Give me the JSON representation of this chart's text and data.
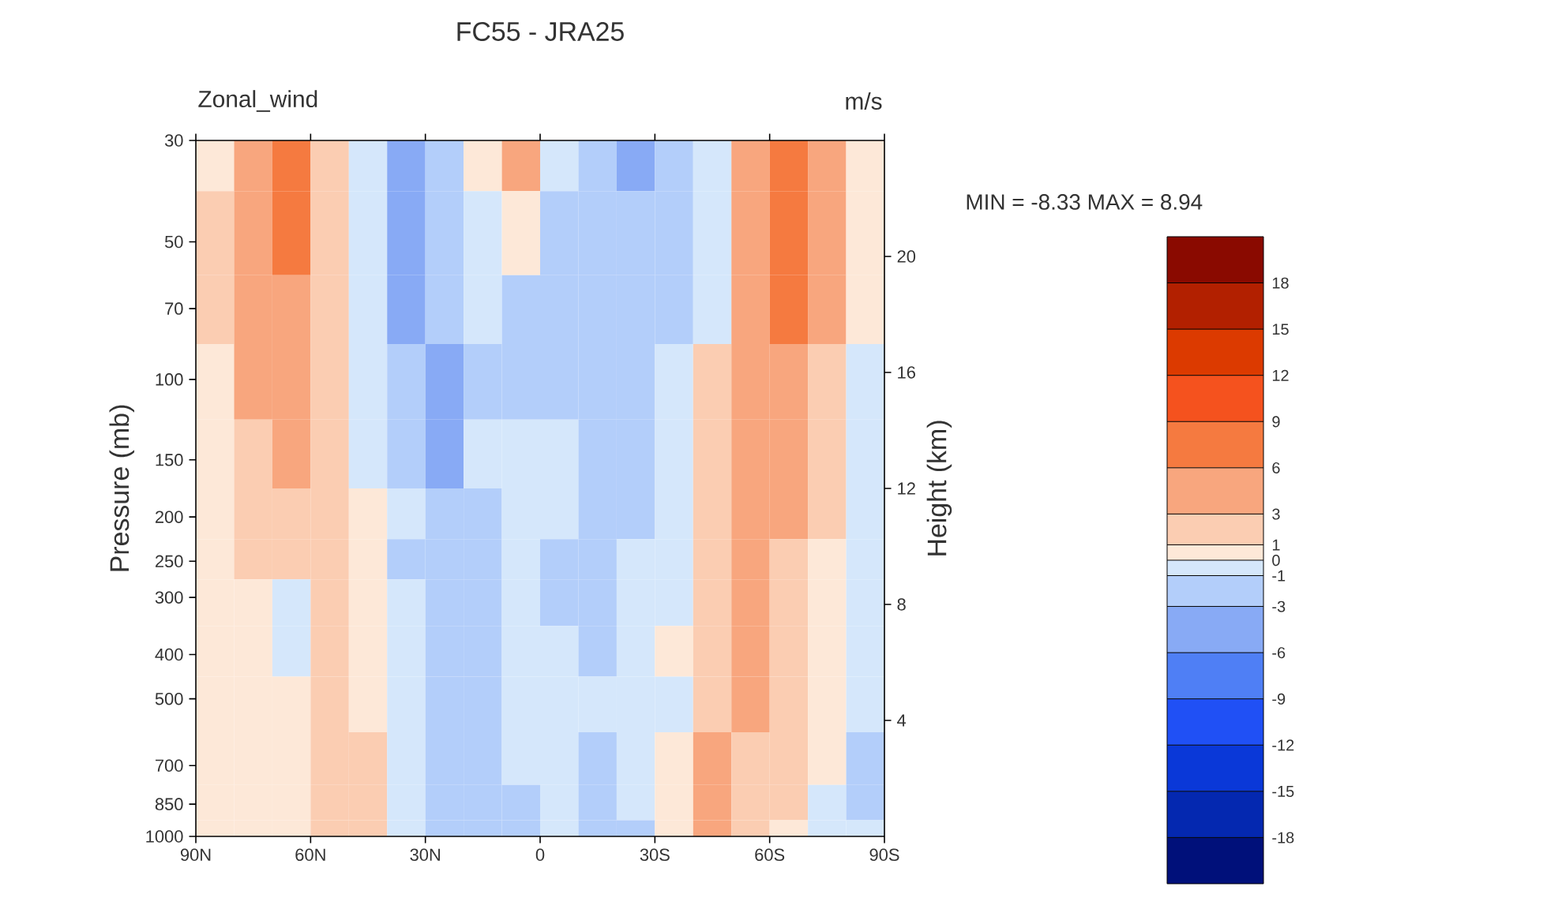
{
  "chart_data": {
    "type": "heatmap",
    "title": "FC55 - JRA25",
    "annotations": [
      "Zonal_wind",
      "m/s",
      "MIN =  -8.33  MAX =   8.94"
    ],
    "ylabel": "Pressure (mb)",
    "y2label": "Height (km)",
    "x": [
      85,
      75,
      65,
      55,
      45,
      35,
      25,
      15,
      5,
      -5,
      -15,
      -25,
      -35,
      -45,
      -55,
      -65,
      -75,
      -85
    ],
    "y": [
      30,
      50,
      70,
      100,
      150,
      200,
      250,
      300,
      400,
      500,
      700,
      850,
      1000
    ],
    "xlim": [
      90,
      -90
    ],
    "xticks": [
      {
        "value": 90,
        "label": "90N"
      },
      {
        "value": 60,
        "label": "60N"
      },
      {
        "value": 30,
        "label": "30N"
      },
      0,
      {
        "value": -30,
        "label": "30S"
      },
      {
        "value": -60,
        "label": "60S"
      },
      {
        "value": -90,
        "label": "90S"
      }
    ],
    "ylim": [
      1000,
      30
    ],
    "log": "y",
    "yticks": [
      30,
      50,
      70,
      100,
      150,
      200,
      250,
      300,
      400,
      500,
      700,
      850,
      1000
    ],
    "y2lim": [
      0,
      24
    ],
    "y2ticks": [
      4,
      8,
      12,
      16,
      20
    ],
    "cells": [
      [
        0.5,
        4.5,
        7.5,
        2,
        -0.5,
        -4.5,
        -2,
        0.5,
        4.5,
        -0.5,
        -2,
        -4.5,
        -2,
        -0.5,
        4.5,
        7.5,
        4.5,
        0.5
      ],
      [
        2,
        4.5,
        7.5,
        2,
        -0.5,
        -4.5,
        -2,
        -0.5,
        0.5,
        -2,
        -2,
        -2,
        -2,
        -0.5,
        4.5,
        7.5,
        4.5,
        0.5
      ],
      [
        2,
        4.5,
        4.5,
        2,
        -0.5,
        -4.5,
        -2,
        -0.5,
        -2,
        -2,
        -2,
        -2,
        -2,
        -0.5,
        4.5,
        7.5,
        4.5,
        0.5
      ],
      [
        0.5,
        4.5,
        4.5,
        2,
        -0.5,
        -2,
        -4.5,
        -2,
        -2,
        -2,
        -2,
        -2,
        -0.5,
        2,
        4.5,
        4.5,
        2,
        -0.5
      ],
      [
        0.5,
        2,
        4.5,
        2,
        -0.5,
        -2,
        -4.5,
        -0.5,
        -0.5,
        -0.5,
        -2,
        -2,
        -0.5,
        2,
        4.5,
        4.5,
        2,
        -0.5
      ],
      [
        0.5,
        2,
        2,
        2,
        0.5,
        -0.5,
        -2,
        -2,
        -0.5,
        -0.5,
        -2,
        -2,
        -0.5,
        2,
        4.5,
        4.5,
        2,
        -0.5
      ],
      [
        0.5,
        2,
        2,
        2,
        0.5,
        -2,
        -2,
        -2,
        -0.5,
        -2,
        -2,
        -0.5,
        -0.5,
        2,
        4.5,
        2,
        0.5,
        -0.5
      ],
      [
        0.5,
        0.5,
        -0.5,
        2,
        0.5,
        -0.5,
        -2,
        -2,
        -0.5,
        -2,
        -2,
        -0.5,
        -0.5,
        2,
        4.5,
        2,
        0.5,
        -0.5
      ],
      [
        0.5,
        0.5,
        -0.5,
        2,
        0.5,
        -0.5,
        -2,
        -2,
        -0.5,
        -0.5,
        -2,
        -0.5,
        0.5,
        2,
        4.5,
        2,
        0.5,
        -0.5
      ],
      [
        0.5,
        0.5,
        0.5,
        2,
        0.5,
        -0.5,
        -2,
        -2,
        -0.5,
        -0.5,
        -0.5,
        -0.5,
        -0.5,
        2,
        4.5,
        2,
        0.5,
        -0.5
      ],
      [
        0.5,
        0.5,
        0.5,
        2,
        2,
        -0.5,
        -2,
        -2,
        -0.5,
        -0.5,
        -2,
        -0.5,
        0.5,
        4.5,
        2,
        2,
        0.5,
        -2
      ],
      [
        0.5,
        0.5,
        0.5,
        2,
        2,
        -0.5,
        -2,
        -2,
        -2,
        -0.5,
        -2,
        -0.5,
        0.5,
        4.5,
        2,
        2,
        -0.5,
        -2
      ],
      [
        0.5,
        0.5,
        0.5,
        2,
        2,
        -0.5,
        -2,
        -2,
        -2,
        -0.5,
        -2,
        -2,
        0.5,
        4.5,
        2,
        0.5,
        -0.5,
        -0.5
      ]
    ],
    "clim": [
      -21,
      21
    ],
    "cticks": [
      -18,
      -15,
      -12,
      -9,
      -6,
      -3,
      -1,
      0,
      1,
      3,
      6,
      9,
      12,
      15,
      18
    ],
    "colors": [
      "#00107a",
      "#0428b0",
      "#0a38d8",
      "#2050f5",
      "#4f7ff5",
      "#88aaf5",
      "#b3cefa",
      "#d5e7fb",
      "#fde8d8",
      "#fbcdb2",
      "#f8a67e",
      "#f57a40",
      "#f5521e",
      "#dc3a00",
      "#b22000",
      "#8a0a00"
    ]
  }
}
